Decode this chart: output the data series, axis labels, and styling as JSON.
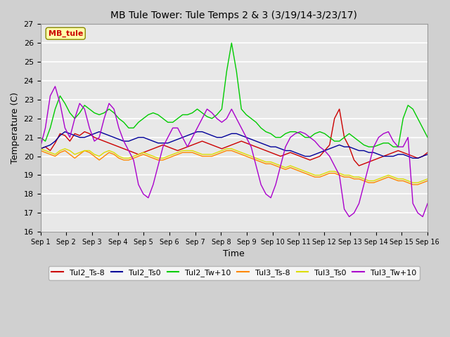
{
  "title": "MB Tule Tower: Tule Temps 2 & 3 (3/19/14-3/23/17)",
  "xlabel": "Time",
  "ylabel": "Temperature (C)",
  "ylim": [
    16.0,
    27.0
  ],
  "yticks": [
    16.0,
    17.0,
    18.0,
    19.0,
    20.0,
    21.0,
    22.0,
    23.0,
    24.0,
    25.0,
    26.0,
    27.0
  ],
  "xtick_labels": [
    "Sep 1",
    "Sep 2",
    "Sep 3",
    "Sep 4",
    "Sep 5",
    "Sep 6",
    "Sep 7",
    "Sep 8",
    "Sep 9",
    "Sep 10",
    "Sep 11",
    "Sep 12",
    "Sep 13",
    "Sep 14",
    "Sep 15",
    "Sep 16"
  ],
  "legend_label": "MB_tule",
  "fig_bg": "#d0d0d0",
  "plot_bg": "#e8e8e8",
  "grid_color": "#ffffff",
  "series_colors": {
    "Tul2_Ts-8": "#cc0000",
    "Tul2_Ts0": "#000099",
    "Tul2_Tw+10": "#00cc00",
    "Tul3_Ts-8": "#ff8800",
    "Tul3_Ts0": "#dddd00",
    "Tul3_Tw+10": "#aa00cc"
  },
  "tul2_ts8": [
    20.4,
    20.5,
    20.3,
    20.7,
    21.2,
    21.1,
    20.8,
    21.2,
    21.1,
    21.3,
    21.2,
    21.0,
    20.9,
    20.8,
    20.7,
    20.6,
    20.5,
    20.4,
    20.3,
    20.2,
    20.1,
    20.2,
    20.3,
    20.4,
    20.5,
    20.6,
    20.5,
    20.4,
    20.3,
    20.4,
    20.5,
    20.6,
    20.7,
    20.8,
    20.7,
    20.6,
    20.5,
    20.4,
    20.5,
    20.6,
    20.7,
    20.8,
    20.7,
    20.6,
    20.5,
    20.4,
    20.3,
    20.2,
    20.1,
    20.0,
    20.1,
    20.2,
    20.1,
    20.0,
    19.9,
    19.8,
    19.9,
    20.0,
    20.3,
    20.6,
    22.0,
    22.5,
    21.0,
    20.5,
    19.8,
    19.5,
    19.6,
    19.7,
    19.8,
    19.9,
    20.0,
    20.1,
    20.2,
    20.3,
    20.2,
    20.1,
    20.0,
    19.9,
    20.0,
    20.2
  ],
  "tul2_ts0": [
    20.4,
    20.5,
    20.6,
    20.8,
    21.1,
    21.3,
    21.2,
    21.1,
    21.0,
    21.0,
    21.1,
    21.2,
    21.3,
    21.2,
    21.1,
    21.0,
    20.9,
    20.8,
    20.8,
    20.9,
    21.0,
    21.0,
    20.9,
    20.8,
    20.7,
    20.7,
    20.7,
    20.8,
    20.9,
    21.0,
    21.1,
    21.2,
    21.3,
    21.3,
    21.2,
    21.1,
    21.0,
    21.0,
    21.1,
    21.2,
    21.2,
    21.1,
    21.0,
    20.9,
    20.8,
    20.7,
    20.6,
    20.5,
    20.5,
    20.4,
    20.3,
    20.3,
    20.2,
    20.1,
    20.0,
    20.0,
    20.1,
    20.2,
    20.3,
    20.4,
    20.5,
    20.6,
    20.5,
    20.5,
    20.4,
    20.3,
    20.3,
    20.2,
    20.2,
    20.1,
    20.0,
    20.0,
    20.0,
    20.1,
    20.1,
    20.0,
    19.9,
    19.9,
    20.0,
    20.1
  ],
  "tul2_tw10": [
    21.0,
    20.8,
    21.5,
    22.5,
    23.2,
    22.8,
    22.3,
    22.0,
    22.3,
    22.7,
    22.5,
    22.3,
    22.2,
    22.3,
    22.5,
    22.3,
    22.0,
    21.8,
    21.5,
    21.5,
    21.8,
    22.0,
    22.2,
    22.3,
    22.2,
    22.0,
    21.8,
    21.8,
    22.0,
    22.2,
    22.2,
    22.3,
    22.5,
    22.3,
    22.1,
    22.0,
    22.2,
    22.5,
    24.5,
    26.0,
    24.5,
    22.5,
    22.2,
    22.0,
    21.8,
    21.5,
    21.3,
    21.2,
    21.0,
    21.0,
    21.2,
    21.3,
    21.3,
    21.2,
    21.0,
    21.0,
    21.2,
    21.3,
    21.2,
    21.0,
    20.8,
    20.8,
    21.0,
    21.2,
    21.0,
    20.8,
    20.6,
    20.5,
    20.5,
    20.6,
    20.7,
    20.7,
    20.5,
    20.5,
    22.0,
    22.7,
    22.5,
    22.0,
    21.5,
    21.0
  ],
  "tul3_ts8": [
    20.3,
    20.2,
    20.1,
    20.0,
    20.2,
    20.3,
    20.1,
    19.9,
    20.1,
    20.3,
    20.2,
    20.0,
    19.8,
    20.0,
    20.2,
    20.1,
    19.9,
    19.8,
    19.8,
    19.9,
    20.0,
    20.1,
    20.0,
    19.9,
    19.8,
    19.8,
    19.9,
    20.0,
    20.1,
    20.2,
    20.2,
    20.2,
    20.1,
    20.0,
    20.0,
    20.0,
    20.1,
    20.2,
    20.3,
    20.3,
    20.2,
    20.1,
    20.0,
    19.9,
    19.8,
    19.7,
    19.6,
    19.6,
    19.5,
    19.4,
    19.3,
    19.4,
    19.3,
    19.2,
    19.1,
    19.0,
    18.9,
    18.9,
    19.0,
    19.1,
    19.1,
    19.0,
    18.9,
    18.9,
    18.8,
    18.8,
    18.7,
    18.6,
    18.6,
    18.7,
    18.8,
    18.9,
    18.8,
    18.7,
    18.7,
    18.6,
    18.5,
    18.5,
    18.6,
    18.7
  ],
  "tul3_ts0": [
    20.4,
    20.3,
    20.2,
    20.1,
    20.3,
    20.4,
    20.3,
    20.1,
    20.2,
    20.3,
    20.3,
    20.1,
    20.0,
    20.2,
    20.3,
    20.2,
    20.0,
    19.9,
    19.9,
    20.0,
    20.1,
    20.2,
    20.1,
    20.0,
    19.9,
    19.9,
    20.0,
    20.1,
    20.2,
    20.3,
    20.3,
    20.3,
    20.2,
    20.1,
    20.1,
    20.1,
    20.2,
    20.3,
    20.4,
    20.4,
    20.3,
    20.2,
    20.1,
    20.0,
    19.9,
    19.8,
    19.7,
    19.7,
    19.6,
    19.5,
    19.4,
    19.5,
    19.4,
    19.3,
    19.2,
    19.1,
    19.0,
    19.0,
    19.1,
    19.2,
    19.2,
    19.1,
    19.0,
    19.0,
    18.9,
    18.9,
    18.8,
    18.7,
    18.7,
    18.8,
    18.9,
    19.0,
    18.9,
    18.8,
    18.8,
    18.7,
    18.6,
    18.6,
    18.7,
    18.8
  ],
  "tul3_tw10": [
    20.5,
    21.5,
    23.2,
    23.7,
    22.8,
    21.5,
    21.0,
    22.0,
    22.8,
    22.5,
    21.5,
    20.8,
    21.0,
    22.0,
    22.8,
    22.5,
    21.5,
    20.8,
    20.3,
    19.8,
    18.5,
    18.0,
    17.8,
    18.5,
    19.5,
    20.5,
    21.0,
    21.5,
    21.5,
    21.0,
    20.5,
    21.0,
    21.5,
    22.0,
    22.5,
    22.3,
    22.0,
    21.8,
    22.0,
    22.5,
    22.0,
    21.5,
    21.0,
    20.5,
    19.5,
    18.5,
    18.0,
    17.8,
    18.5,
    19.5,
    20.5,
    21.0,
    21.2,
    21.3,
    21.2,
    21.0,
    20.8,
    20.5,
    20.3,
    20.0,
    19.5,
    19.0,
    17.2,
    16.8,
    17.0,
    17.5,
    18.5,
    19.5,
    20.5,
    21.0,
    21.2,
    21.3,
    20.8,
    20.5,
    20.5,
    21.0,
    17.5,
    17.0,
    16.8,
    17.5
  ]
}
